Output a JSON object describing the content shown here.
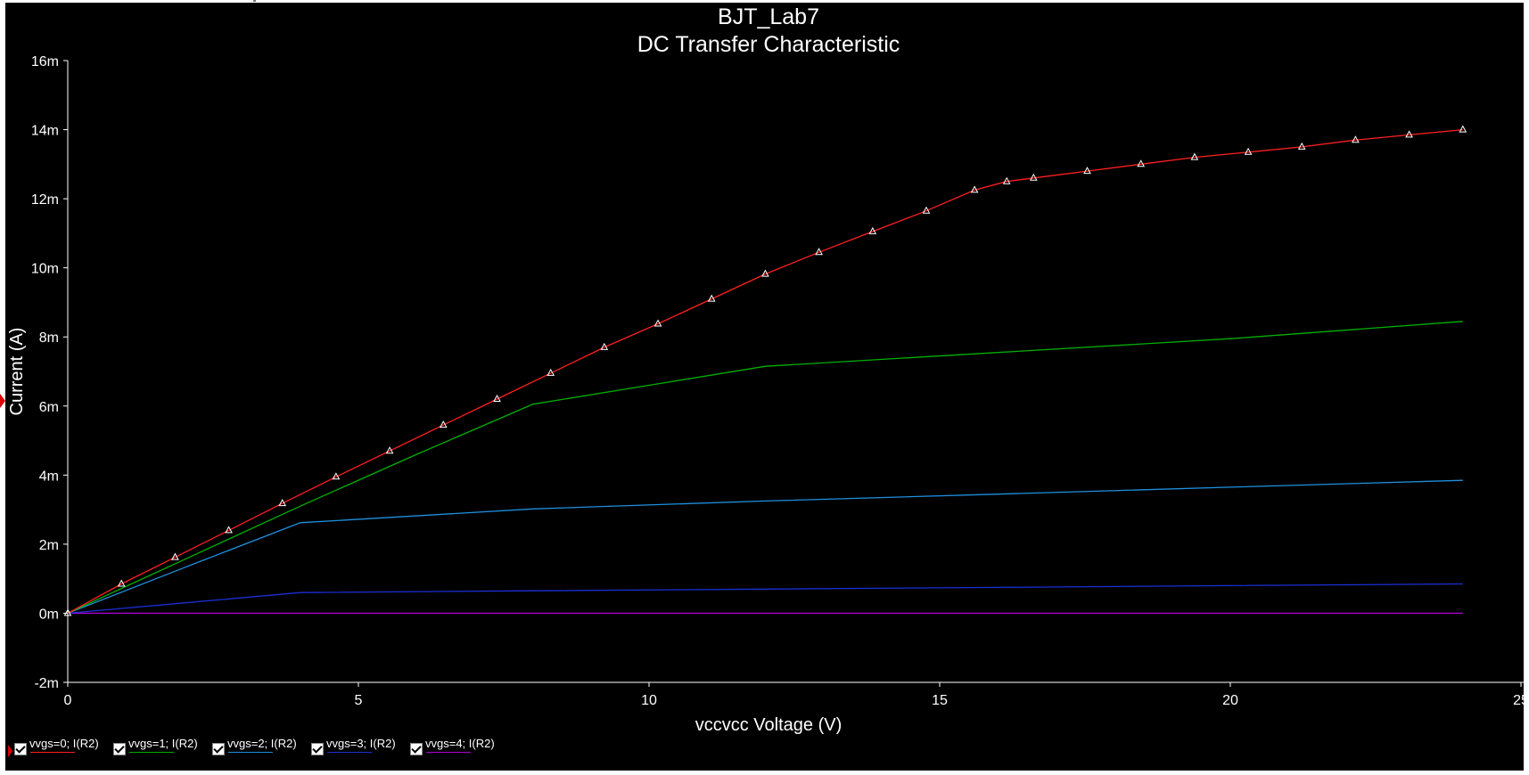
{
  "chart_data": {
    "type": "line",
    "title": "BJT_Lab7",
    "subtitle": "DC Transfer Characteristic",
    "xlabel": "vccvcc Voltage (V)",
    "ylabel": "Current (A)",
    "xlim": [
      0,
      25
    ],
    "ylim": [
      -2,
      16
    ],
    "x_ticks": [
      0,
      5,
      10,
      15,
      20,
      25
    ],
    "x_tick_labels": [
      "0",
      "5",
      "10",
      "15",
      "20",
      "25"
    ],
    "y_ticks": [
      -2,
      0,
      2,
      4,
      6,
      8,
      10,
      12,
      14,
      16
    ],
    "y_tick_labels": [
      "-2m",
      "0m",
      "2m",
      "4m",
      "6m",
      "8m",
      "10m",
      "12m",
      "14m",
      "16m"
    ],
    "grid": false,
    "legend_position": "bottom-left",
    "series": [
      {
        "name": "vvgs=0; I(R2)",
        "color": "#ff2020",
        "markers": true,
        "points": [
          [
            0,
            0
          ],
          [
            1,
            0.85
          ],
          [
            2,
            1.62
          ],
          [
            3,
            2.4
          ],
          [
            4,
            3.18
          ],
          [
            5,
            3.95
          ],
          [
            6,
            4.7
          ],
          [
            7,
            5.45
          ],
          [
            8,
            6.2
          ],
          [
            9,
            6.95
          ],
          [
            10,
            7.7
          ],
          [
            11,
            8.38
          ],
          [
            12,
            9.1
          ],
          [
            13,
            9.82
          ],
          [
            14,
            10.45
          ],
          [
            15,
            11.05
          ],
          [
            16,
            11.65
          ],
          [
            16.9,
            12.25
          ],
          [
            17.5,
            12.5
          ],
          [
            18,
            12.6
          ],
          [
            19,
            12.8
          ],
          [
            20,
            13
          ],
          [
            21,
            13.2
          ],
          [
            22,
            13.35
          ],
          [
            23,
            13.5
          ],
          [
            24,
            13.7
          ],
          [
            25,
            13.85
          ],
          [
            26,
            14.0
          ]
        ]
      },
      {
        "name": "vvgs=1; I(R2)",
        "color": "#00b000",
        "markers": false,
        "points": [
          [
            0,
            0
          ],
          [
            2,
            1.55
          ],
          [
            4,
            3.1
          ],
          [
            6,
            4.6
          ],
          [
            8,
            6.05
          ],
          [
            10,
            6.6
          ],
          [
            12,
            7.15
          ],
          [
            16,
            7.55
          ],
          [
            20,
            7.95
          ],
          [
            24,
            8.45
          ]
        ]
      },
      {
        "name": "vvgs=2; I(R2)",
        "color": "#1e90e0",
        "markers": false,
        "points": [
          [
            0,
            0
          ],
          [
            2,
            1.32
          ],
          [
            4,
            2.62
          ],
          [
            8,
            3.02
          ],
          [
            12,
            3.25
          ],
          [
            16,
            3.45
          ],
          [
            20,
            3.65
          ],
          [
            24,
            3.85
          ]
        ]
      },
      {
        "name": "vvgs=3; I(R2)",
        "color": "#1a2fd8",
        "markers": false,
        "points": [
          [
            0,
            0
          ],
          [
            2,
            0.3
          ],
          [
            4,
            0.6
          ],
          [
            8,
            0.65
          ],
          [
            12,
            0.7
          ],
          [
            16,
            0.75
          ],
          [
            20,
            0.8
          ],
          [
            24,
            0.85
          ]
        ]
      },
      {
        "name": "vvgs=4; I(R2)",
        "color": "#b000d8",
        "markers": false,
        "points": [
          [
            0,
            0
          ],
          [
            24,
            0
          ]
        ]
      }
    ]
  },
  "legend": {
    "items": [
      {
        "label": "vvgs=0; I(R2)",
        "color": "#ff2020",
        "checked": true
      },
      {
        "label": "vvgs=1; I(R2)",
        "color": "#00b000",
        "checked": true
      },
      {
        "label": "vvgs=2; I(R2)",
        "color": "#1e90e0",
        "checked": true
      },
      {
        "label": "vvgs=3; I(R2)",
        "color": "#1a2fd8",
        "checked": true
      },
      {
        "label": "vvgs=4; I(R2)",
        "color": "#b000d8",
        "checked": true
      }
    ]
  }
}
